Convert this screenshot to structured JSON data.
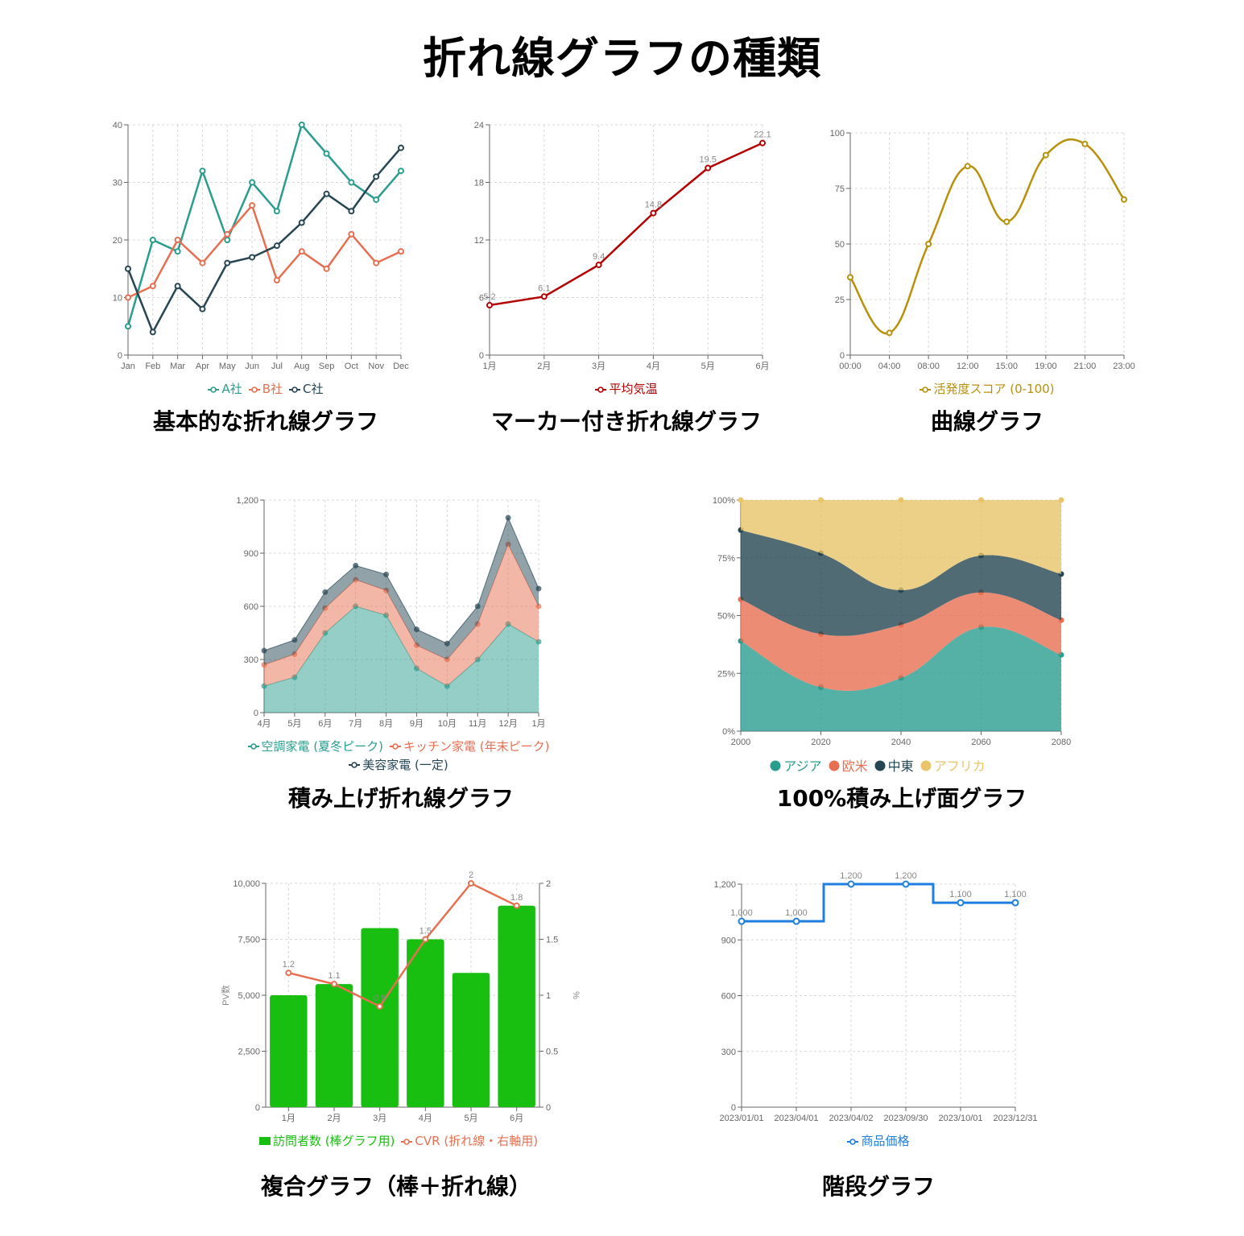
{
  "page": {
    "title": "折れ線グラフの種類"
  },
  "colors": {
    "teal": "#2a9d8f",
    "orange": "#e76f51",
    "navy": "#264653",
    "darkred": "#b30000",
    "gold": "#b8900a",
    "green": "#19bf10",
    "blue": "#1f7fe0",
    "sand": "#e9c46a"
  },
  "charts": {
    "basic": {
      "caption": "基本的な折れ線グラフ",
      "legend": [
        "A社",
        "B社",
        "C社"
      ]
    },
    "marker": {
      "caption": "マーカー付き折れ線グラフ",
      "legend": [
        "平均気温"
      ]
    },
    "curve": {
      "caption": "曲線グラフ",
      "legend": [
        "活発度スコア (0-100)"
      ]
    },
    "stacked": {
      "caption": "積み上げ折れ線グラフ",
      "legend": [
        "空調家電 (夏冬ピーク)",
        "キッチン家電 (年末ピーク)",
        "美容家電 (一定)"
      ]
    },
    "percent": {
      "caption": "100%積み上げ面グラフ",
      "legend": [
        "アジア",
        "欧米",
        "中東",
        "アフリカ"
      ]
    },
    "combo": {
      "caption": "複合グラフ（棒＋折れ線）",
      "legend": [
        "訪問者数 (棒グラフ用)",
        "CVR (折れ線・右軸用)"
      ]
    },
    "step": {
      "caption": "階段グラフ",
      "legend": [
        "商品価格"
      ]
    }
  },
  "chart_data": [
    {
      "id": "basic",
      "type": "line",
      "title": "基本的な折れ線グラフ",
      "categories": [
        "Jan",
        "Feb",
        "Mar",
        "Apr",
        "May",
        "Jun",
        "Jul",
        "Aug",
        "Sep",
        "Oct",
        "Nov",
        "Dec"
      ],
      "series": [
        {
          "name": "A社",
          "color": "#2a9d8f",
          "values": [
            5,
            20,
            18,
            32,
            20,
            30,
            25,
            40,
            35,
            30,
            27,
            32
          ]
        },
        {
          "name": "B社",
          "color": "#e76f51",
          "values": [
            10,
            12,
            20,
            16,
            21,
            26,
            13,
            18,
            15,
            21,
            16,
            18
          ]
        },
        {
          "name": "C社",
          "color": "#264653",
          "values": [
            15,
            4,
            12,
            8,
            16,
            17,
            19,
            23,
            28,
            25,
            31,
            36
          ]
        }
      ],
      "yticks": [
        0,
        10,
        20,
        30,
        40
      ],
      "ylim": [
        0,
        40
      ],
      "grid": true,
      "legend_position": "bottom"
    },
    {
      "id": "marker",
      "type": "line",
      "title": "マーカー付き折れ線グラフ",
      "categories": [
        "1月",
        "2月",
        "3月",
        "4月",
        "5月",
        "6月"
      ],
      "series": [
        {
          "name": "平均気温",
          "color": "#b30000",
          "values": [
            5.2,
            6.1,
            9.4,
            14.8,
            19.5,
            22.1
          ]
        }
      ],
      "yticks": [
        0,
        6,
        12,
        18,
        24
      ],
      "ylim": [
        0,
        24
      ],
      "data_labels": true,
      "grid": true,
      "legend_position": "bottom"
    },
    {
      "id": "curve",
      "type": "line",
      "title": "曲線グラフ",
      "smooth": true,
      "categories": [
        "00:00",
        "04:00",
        "08:00",
        "12:00",
        "15:00",
        "19:00",
        "21:00",
        "23:00"
      ],
      "series": [
        {
          "name": "活発度スコア (0-100)",
          "color": "#b8900a",
          "values": [
            35,
            10,
            50,
            85,
            60,
            90,
            95,
            70
          ]
        }
      ],
      "yticks": [
        0,
        25,
        50,
        75,
        100
      ],
      "ylim": [
        0,
        100
      ],
      "grid": true,
      "legend_position": "bottom"
    },
    {
      "id": "stacked",
      "type": "area",
      "title": "積み上げ折れ線グラフ",
      "stacked": true,
      "categories": [
        "4月",
        "5月",
        "6月",
        "7月",
        "8月",
        "9月",
        "10月",
        "11月",
        "12月",
        "1月"
      ],
      "series": [
        {
          "name": "空調家電 (夏冬ピーク)",
          "color": "#2a9d8f",
          "values": [
            150,
            200,
            450,
            600,
            550,
            250,
            150,
            300,
            500,
            400
          ]
        },
        {
          "name": "キッチン家電 (年末ピーク)",
          "color": "#e76f51",
          "values": [
            120,
            130,
            140,
            150,
            140,
            130,
            150,
            200,
            450,
            200
          ]
        },
        {
          "name": "美容家電 (一定)",
          "color": "#264653",
          "values": [
            80,
            80,
            90,
            80,
            90,
            90,
            90,
            100,
            150,
            100
          ]
        }
      ],
      "yticks": [
        0,
        300,
        600,
        900,
        1200
      ],
      "ytick_labels": [
        "0",
        "300",
        "600",
        "900",
        "1,200"
      ],
      "ylim": [
        0,
        1200
      ],
      "grid": true,
      "legend_position": "bottom"
    },
    {
      "id": "percent",
      "type": "area",
      "title": "100%積み上げ面グラフ",
      "stacked": "percent",
      "smooth": true,
      "categories": [
        "2000",
        "2020",
        "2040",
        "2060",
        "2080"
      ],
      "series": [
        {
          "name": "アジア",
          "color": "#2a9d8f",
          "values": [
            39,
            19,
            23,
            45,
            33
          ]
        },
        {
          "name": "欧米",
          "color": "#e76f51",
          "values": [
            18,
            23,
            23,
            15,
            15
          ]
        },
        {
          "name": "中東",
          "color": "#264653",
          "values": [
            30,
            35,
            15,
            16,
            20
          ]
        },
        {
          "name": "アフリカ",
          "color": "#e9c46a",
          "values": [
            13,
            23,
            39,
            24,
            32
          ]
        }
      ],
      "yticks": [
        0,
        25,
        50,
        75,
        100
      ],
      "ytick_labels": [
        "0%",
        "25%",
        "50%",
        "75%",
        "100%"
      ],
      "ylim": [
        0,
        100
      ],
      "legend_position": "bottom"
    },
    {
      "id": "combo",
      "type": "bar",
      "title": "複合グラフ（棒＋折れ線）",
      "categories": [
        "1月",
        "2月",
        "3月",
        "4月",
        "5月",
        "6月"
      ],
      "series": [
        {
          "name": "訪問者数 (棒グラフ用)",
          "type": "bar",
          "color": "#19bf10",
          "axis": "left",
          "values": [
            5000,
            5500,
            8000,
            7500,
            6000,
            9000
          ]
        },
        {
          "name": "CVR (折れ線・右軸用)",
          "type": "line",
          "color": "#e76f51",
          "axis": "right",
          "values": [
            1.2,
            1.1,
            0.9,
            1.5,
            2,
            1.8
          ]
        }
      ],
      "ylabel": "PV数",
      "ylabel_right": "%",
      "yticks": [
        0,
        2500,
        5000,
        7500,
        10000
      ],
      "ytick_labels": [
        "0",
        "2,500",
        "5,000",
        "7,500",
        "10,000"
      ],
      "ylim": [
        0,
        10000
      ],
      "yticks_right": [
        0,
        0.5,
        1,
        1.5,
        2
      ],
      "ylim_right": [
        0,
        2
      ],
      "grid": true,
      "legend_position": "bottom"
    },
    {
      "id": "step",
      "type": "line",
      "title": "階段グラフ",
      "step": "middle",
      "categories": [
        "2023/01/01",
        "2023/04/01",
        "2023/04/02",
        "2023/09/30",
        "2023/10/01",
        "2023/12/31"
      ],
      "series": [
        {
          "name": "商品価格",
          "color": "#1f7fe0",
          "values": [
            1000,
            1000,
            1200,
            1200,
            1100,
            1100
          ]
        }
      ],
      "data_labels": [
        "1,000",
        "1,000",
        "1,200",
        "1,200",
        "1,100",
        "1,100"
      ],
      "yticks": [
        0,
        300,
        600,
        900,
        1200
      ],
      "ytick_labels": [
        "0",
        "300",
        "600",
        "900",
        "1,200"
      ],
      "ylim": [
        0,
        1200
      ],
      "grid": true,
      "legend_position": "bottom"
    }
  ]
}
